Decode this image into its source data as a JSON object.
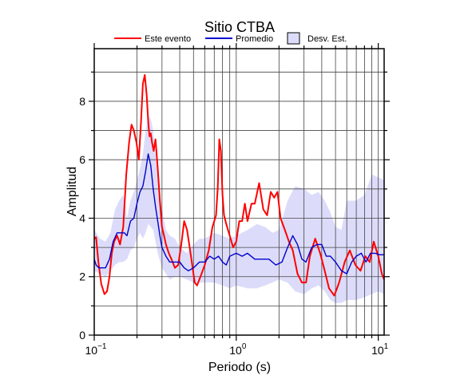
{
  "chart_data": {
    "type": "line",
    "title": "Sitio CTBA",
    "xlabel": "Periodo (s)",
    "ylabel": "Amplitud",
    "xscale": "log",
    "xlim": [
      0.1,
      11
    ],
    "ylim": [
      0,
      9.8
    ],
    "x_ticks": [
      {
        "value": 0.1,
        "base": "10",
        "exp": "−1"
      },
      {
        "value": 1,
        "base": "10",
        "exp": "0"
      },
      {
        "value": 10,
        "base": "10",
        "exp": "1"
      }
    ],
    "y_ticks": [
      {
        "value": 0,
        "label": "0"
      },
      {
        "value": 2,
        "label": "2"
      },
      {
        "value": 4,
        "label": "4"
      },
      {
        "value": 6,
        "label": "6"
      },
      {
        "value": 8,
        "label": "8"
      }
    ],
    "grid": true,
    "legend_position": "top",
    "legend": {
      "event": "Este evento",
      "mean": "Promedio",
      "std": "Desv. Est."
    },
    "colors": {
      "event": "#ff0000",
      "mean": "#0000cc",
      "std_fill": "#dcdcfa",
      "std_stroke": "#000080"
    },
    "series": [
      {
        "key": "event",
        "x": [
          0.1,
          0.103,
          0.107,
          0.112,
          0.118,
          0.123,
          0.128,
          0.133,
          0.138,
          0.145,
          0.152,
          0.16,
          0.168,
          0.176,
          0.183,
          0.19,
          0.198,
          0.206,
          0.213,
          0.22,
          0.227,
          0.234,
          0.24,
          0.245,
          0.25,
          0.255,
          0.262,
          0.27,
          0.28,
          0.29,
          0.3,
          0.31,
          0.32,
          0.335,
          0.35,
          0.37,
          0.39,
          0.41,
          0.43,
          0.45,
          0.47,
          0.49,
          0.51,
          0.53,
          0.56,
          0.6,
          0.64,
          0.68,
          0.72,
          0.74,
          0.76,
          0.78,
          0.8,
          0.82,
          0.85,
          0.9,
          0.95,
          1.0,
          1.05,
          1.1,
          1.15,
          1.2,
          1.28,
          1.35,
          1.45,
          1.55,
          1.65,
          1.75,
          1.85,
          1.95,
          2.05,
          2.2,
          2.35,
          2.5,
          2.7,
          2.9,
          3.1,
          3.3,
          3.6,
          3.9,
          4.2,
          4.5,
          4.9,
          5.3,
          5.8,
          6.3,
          6.9,
          7.5,
          8.1,
          8.7,
          9.3,
          10.0,
          10.6,
          11.0
        ],
        "y": [
          3.3,
          3.35,
          2.5,
          1.75,
          1.4,
          1.5,
          2.0,
          2.8,
          3.2,
          3.4,
          3.1,
          3.7,
          5.5,
          6.6,
          7.2,
          7.0,
          6.6,
          6.0,
          7.2,
          8.6,
          8.9,
          8.2,
          7.3,
          6.8,
          6.9,
          6.6,
          6.3,
          6.7,
          5.7,
          4.6,
          3.7,
          3.4,
          3.1,
          2.8,
          2.6,
          2.3,
          2.4,
          3.1,
          3.9,
          3.6,
          3.0,
          2.4,
          1.8,
          1.7,
          2.0,
          2.4,
          2.9,
          3.7,
          4.1,
          5.0,
          6.7,
          6.3,
          4.8,
          4.1,
          3.8,
          3.4,
          3.0,
          3.2,
          3.9,
          3.9,
          4.5,
          3.9,
          4.5,
          4.5,
          5.2,
          4.3,
          4.1,
          4.9,
          4.7,
          4.9,
          4.0,
          3.6,
          3.2,
          2.9,
          2.1,
          1.8,
          1.8,
          2.7,
          3.3,
          2.8,
          2.2,
          1.6,
          1.35,
          1.8,
          2.5,
          2.9,
          2.4,
          2.2,
          2.7,
          2.5,
          3.2,
          2.7,
          2.1,
          1.9
        ]
      },
      {
        "key": "mean",
        "x": [
          0.1,
          0.103,
          0.108,
          0.113,
          0.12,
          0.128,
          0.136,
          0.145,
          0.155,
          0.163,
          0.17,
          0.18,
          0.19,
          0.2,
          0.21,
          0.22,
          0.23,
          0.24,
          0.25,
          0.26,
          0.27,
          0.28,
          0.29,
          0.3,
          0.32,
          0.34,
          0.37,
          0.4,
          0.43,
          0.46,
          0.5,
          0.55,
          0.6,
          0.65,
          0.7,
          0.75,
          0.8,
          0.85,
          0.9,
          1.0,
          1.1,
          1.2,
          1.35,
          1.5,
          1.7,
          1.9,
          2.1,
          2.3,
          2.5,
          2.7,
          2.9,
          3.1,
          3.4,
          3.7,
          4.0,
          4.3,
          4.6,
          5.0,
          5.5,
          6.0,
          6.5,
          7.0,
          7.6,
          8.2,
          8.8,
          9.5,
          10.2,
          11.0
        ],
        "y": [
          2.6,
          2.4,
          2.3,
          2.3,
          2.3,
          2.6,
          3.2,
          3.5,
          3.5,
          3.5,
          3.4,
          3.9,
          4.0,
          4.5,
          4.9,
          5.1,
          5.6,
          6.2,
          5.8,
          5.0,
          4.4,
          3.9,
          3.4,
          3.0,
          2.7,
          2.5,
          2.5,
          2.5,
          2.3,
          2.2,
          2.3,
          2.5,
          2.5,
          2.7,
          2.6,
          2.7,
          2.5,
          2.4,
          2.7,
          2.8,
          2.7,
          2.8,
          2.6,
          2.6,
          2.6,
          2.4,
          2.5,
          3.0,
          3.4,
          3.1,
          2.6,
          2.5,
          3.0,
          3.1,
          3.1,
          2.7,
          2.7,
          2.5,
          2.2,
          2.1,
          2.5,
          2.7,
          2.8,
          2.5,
          2.8,
          2.8,
          2.75,
          2.75
        ]
      }
    ],
    "std_band": {
      "x": [
        0.1,
        0.11,
        0.12,
        0.13,
        0.14,
        0.15,
        0.16,
        0.17,
        0.18,
        0.19,
        0.2,
        0.21,
        0.22,
        0.23,
        0.24,
        0.25,
        0.26,
        0.27,
        0.28,
        0.3,
        0.32,
        0.34,
        0.37,
        0.4,
        0.45,
        0.5,
        0.55,
        0.6,
        0.7,
        0.8,
        0.9,
        1.0,
        1.2,
        1.4,
        1.6,
        1.8,
        2.0,
        2.3,
        2.6,
        3.0,
        3.4,
        3.8,
        4.2,
        4.6,
        5.0,
        5.5,
        6.0,
        7.0,
        8.0,
        9.0,
        10.0,
        11.0
      ],
      "upper": [
        3.6,
        3.3,
        3.2,
        3.5,
        4.3,
        4.6,
        4.8,
        4.0,
        4.6,
        4.9,
        5.3,
        5.7,
        6.2,
        7.0,
        7.5,
        7.4,
        7.0,
        6.2,
        5.3,
        4.3,
        3.6,
        3.4,
        3.3,
        3.0,
        2.8,
        3.1,
        3.3,
        3.3,
        3.5,
        3.4,
        3.3,
        3.4,
        3.6,
        3.8,
        3.7,
        3.5,
        3.6,
        4.6,
        5.1,
        5.0,
        4.8,
        4.9,
        4.6,
        4.2,
        3.7,
        3.6,
        4.6,
        4.6,
        4.8,
        5.5,
        5.4,
        5.3
      ],
      "lower": [
        2.2,
        2.1,
        2.0,
        2.2,
        2.4,
        2.5,
        2.5,
        2.6,
        2.9,
        3.0,
        3.3,
        3.5,
        3.3,
        3.5,
        3.8,
        3.7,
        3.6,
        3.2,
        2.8,
        2.3,
        2.1,
        1.9,
        2.0,
        2.0,
        1.9,
        1.8,
        1.8,
        1.8,
        1.8,
        1.7,
        1.6,
        1.7,
        1.6,
        1.6,
        1.7,
        1.8,
        1.9,
        1.8,
        1.5,
        1.4,
        1.6,
        1.7,
        1.5,
        1.2,
        1.1,
        1.1,
        1.2,
        1.2,
        1.3,
        1.4,
        1.5,
        1.4
      ]
    }
  }
}
